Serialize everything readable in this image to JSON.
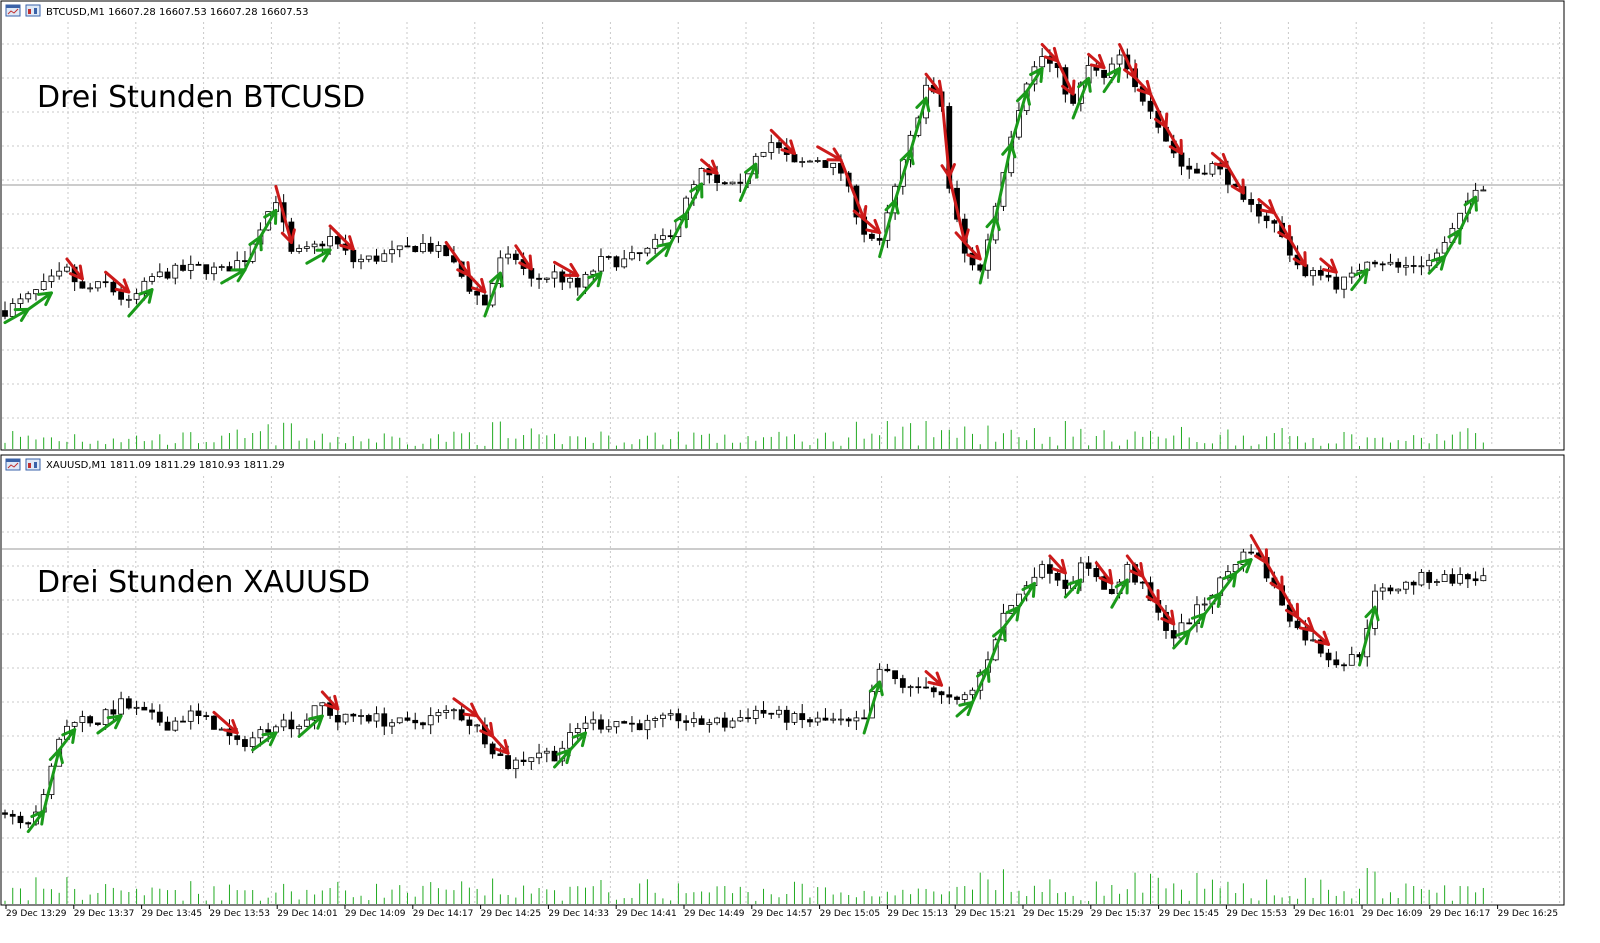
{
  "top": {
    "header": "BTCUSD,M1  16607.28 16607.53 16607.28 16607.53",
    "overlay_title": "Drei Stunden BTCUSD"
  },
  "bottom": {
    "header": "XAUUSD,M1  1811.09 1811.29 1810.93 1811.29",
    "overlay_title": "Drei Stunden XAUUSD"
  },
  "colors": {
    "up_arrow": "#1a9a1a",
    "down_arrow": "#cc1a1a",
    "volume": "#22aa22",
    "grid": "#c8c8c8",
    "candle": "#000000"
  },
  "icons": [
    "chart-window-icon"
  ],
  "chart_data": [
    {
      "type": "candlestick",
      "symbol": "BTCUSD",
      "timeframe": "M1",
      "title": "Drei Stunden BTCUSD",
      "x_ticks": [
        "29 Dec 13:29",
        "29 Dec 13:37",
        "29 Dec 13:45",
        "29 Dec 13:53",
        "29 Dec 14:01",
        "29 Dec 14:09",
        "29 Dec 14:17",
        "29 Dec 14:25",
        "29 Dec 14:33",
        "29 Dec 14:41",
        "29 Dec 14:49",
        "29 Dec 14:57",
        "29 Dec 15:05",
        "29 Dec 15:13",
        "29 Dec 15:21",
        "29 Dec 15:29",
        "29 Dec 15:37",
        "29 Dec 15:45",
        "29 Dec 15:53",
        "29 Dec 16:01",
        "29 Dec 16:09",
        "29 Dec 16:17",
        "29 Dec 16:25"
      ],
      "close_path": [
        [
          0,
          0.18
        ],
        [
          3,
          0.22
        ],
        [
          6,
          0.27
        ],
        [
          8,
          0.3
        ],
        [
          10,
          0.24
        ],
        [
          13,
          0.26
        ],
        [
          16,
          0.2
        ],
        [
          19,
          0.28
        ],
        [
          22,
          0.3
        ],
        [
          25,
          0.31
        ],
        [
          28,
          0.3
        ],
        [
          31,
          0.34
        ],
        [
          33,
          0.44
        ],
        [
          35,
          0.52
        ],
        [
          37,
          0.35
        ],
        [
          39,
          0.36
        ],
        [
          42,
          0.4
        ],
        [
          45,
          0.33
        ],
        [
          48,
          0.34
        ],
        [
          51,
          0.36
        ],
        [
          54,
          0.38
        ],
        [
          57,
          0.35
        ],
        [
          60,
          0.25
        ],
        [
          62,
          0.2
        ],
        [
          64,
          0.33
        ],
        [
          66,
          0.34
        ],
        [
          68,
          0.27
        ],
        [
          71,
          0.29
        ],
        [
          74,
          0.25
        ],
        [
          77,
          0.33
        ],
        [
          80,
          0.33
        ],
        [
          83,
          0.36
        ],
        [
          86,
          0.42
        ],
        [
          88,
          0.51
        ],
        [
          90,
          0.6
        ],
        [
          92,
          0.56
        ],
        [
          95,
          0.55
        ],
        [
          97,
          0.66
        ],
        [
          99,
          0.69
        ],
        [
          102,
          0.62
        ],
        [
          105,
          0.64
        ],
        [
          108,
          0.6
        ],
        [
          111,
          0.42
        ],
        [
          113,
          0.38
        ],
        [
          115,
          0.55
        ],
        [
          117,
          0.7
        ],
        [
          119,
          0.86
        ],
        [
          121,
          0.8
        ],
        [
          122,
          0.55
        ],
        [
          124,
          0.35
        ],
        [
          126,
          0.3
        ],
        [
          128,
          0.5
        ],
        [
          130,
          0.72
        ],
        [
          132,
          0.88
        ],
        [
          134,
          0.95
        ],
        [
          136,
          0.9
        ],
        [
          138,
          0.8
        ],
        [
          140,
          0.92
        ],
        [
          142,
          0.88
        ],
        [
          144,
          0.95
        ],
        [
          146,
          0.85
        ],
        [
          148,
          0.8
        ],
        [
          150,
          0.7
        ],
        [
          152,
          0.62
        ],
        [
          154,
          0.6
        ],
        [
          156,
          0.62
        ],
        [
          158,
          0.58
        ],
        [
          160,
          0.5
        ],
        [
          162,
          0.48
        ],
        [
          164,
          0.44
        ],
        [
          166,
          0.36
        ],
        [
          168,
          0.28
        ],
        [
          170,
          0.3
        ],
        [
          172,
          0.26
        ],
        [
          174,
          0.28
        ],
        [
          176,
          0.34
        ],
        [
          178,
          0.33
        ],
        [
          180,
          0.31
        ],
        [
          182,
          0.32
        ],
        [
          184,
          0.33
        ],
        [
          186,
          0.38
        ],
        [
          188,
          0.46
        ],
        [
          190,
          0.56
        ]
      ]
    },
    {
      "type": "candlestick",
      "symbol": "XAUUSD",
      "timeframe": "M1",
      "title": "Drei Stunden XAUUSD",
      "x_ticks": [
        "29 Dec 13:29",
        "29 Dec 13:37",
        "29 Dec 13:45",
        "29 Dec 13:53",
        "29 Dec 14:01",
        "29 Dec 14:09",
        "29 Dec 14:17",
        "29 Dec 14:25",
        "29 Dec 14:33",
        "29 Dec 14:41",
        "29 Dec 14:49",
        "29 Dec 14:57",
        "29 Dec 15:05",
        "29 Dec 15:13",
        "29 Dec 15:21",
        "29 Dec 15:29",
        "29 Dec 15:37",
        "29 Dec 15:45",
        "29 Dec 15:53",
        "29 Dec 16:01",
        "29 Dec 16:09",
        "29 Dec 16:17",
        "29 Dec 16:25"
      ],
      "close_path": [
        [
          0,
          0.08
        ],
        [
          3,
          0.06
        ],
        [
          5,
          0.12
        ],
        [
          7,
          0.3
        ],
        [
          9,
          0.36
        ],
        [
          12,
          0.35
        ],
        [
          15,
          0.4
        ],
        [
          18,
          0.37
        ],
        [
          21,
          0.34
        ],
        [
          24,
          0.37
        ],
        [
          27,
          0.34
        ],
        [
          30,
          0.28
        ],
        [
          32,
          0.3
        ],
        [
          35,
          0.35
        ],
        [
          38,
          0.34
        ],
        [
          41,
          0.4
        ],
        [
          43,
          0.35
        ],
        [
          46,
          0.37
        ],
        [
          49,
          0.35
        ],
        [
          52,
          0.34
        ],
        [
          55,
          0.36
        ],
        [
          58,
          0.38
        ],
        [
          61,
          0.33
        ],
        [
          63,
          0.27
        ],
        [
          65,
          0.22
        ],
        [
          67,
          0.24
        ],
        [
          69,
          0.26
        ],
        [
          71,
          0.25
        ],
        [
          73,
          0.3
        ],
        [
          75,
          0.35
        ],
        [
          77,
          0.34
        ],
        [
          79,
          0.35
        ],
        [
          81,
          0.34
        ],
        [
          83,
          0.34
        ],
        [
          85,
          0.35
        ],
        [
          87,
          0.36
        ],
        [
          89,
          0.34
        ],
        [
          91,
          0.35
        ],
        [
          93,
          0.34
        ],
        [
          95,
          0.36
        ],
        [
          97,
          0.38
        ],
        [
          99,
          0.37
        ],
        [
          101,
          0.36
        ],
        [
          103,
          0.35
        ],
        [
          105,
          0.35
        ],
        [
          107,
          0.35
        ],
        [
          109,
          0.34
        ],
        [
          111,
          0.35
        ],
        [
          113,
          0.5
        ],
        [
          115,
          0.47
        ],
        [
          117,
          0.44
        ],
        [
          119,
          0.46
        ],
        [
          121,
          0.42
        ],
        [
          123,
          0.4
        ],
        [
          125,
          0.44
        ],
        [
          127,
          0.54
        ],
        [
          129,
          0.66
        ],
        [
          131,
          0.72
        ],
        [
          133,
          0.79
        ],
        [
          135,
          0.8
        ],
        [
          137,
          0.75
        ],
        [
          139,
          0.8
        ],
        [
          141,
          0.78
        ],
        [
          143,
          0.72
        ],
        [
          145,
          0.8
        ],
        [
          147,
          0.74
        ],
        [
          149,
          0.66
        ],
        [
          151,
          0.6
        ],
        [
          153,
          0.65
        ],
        [
          155,
          0.7
        ],
        [
          157,
          0.76
        ],
        [
          159,
          0.82
        ],
        [
          161,
          0.86
        ],
        [
          163,
          0.78
        ],
        [
          165,
          0.7
        ],
        [
          167,
          0.62
        ],
        [
          169,
          0.58
        ],
        [
          171,
          0.54
        ],
        [
          173,
          0.52
        ],
        [
          175,
          0.55
        ],
        [
          177,
          0.72
        ],
        [
          179,
          0.74
        ],
        [
          181,
          0.75
        ],
        [
          183,
          0.77
        ]
      ]
    }
  ]
}
